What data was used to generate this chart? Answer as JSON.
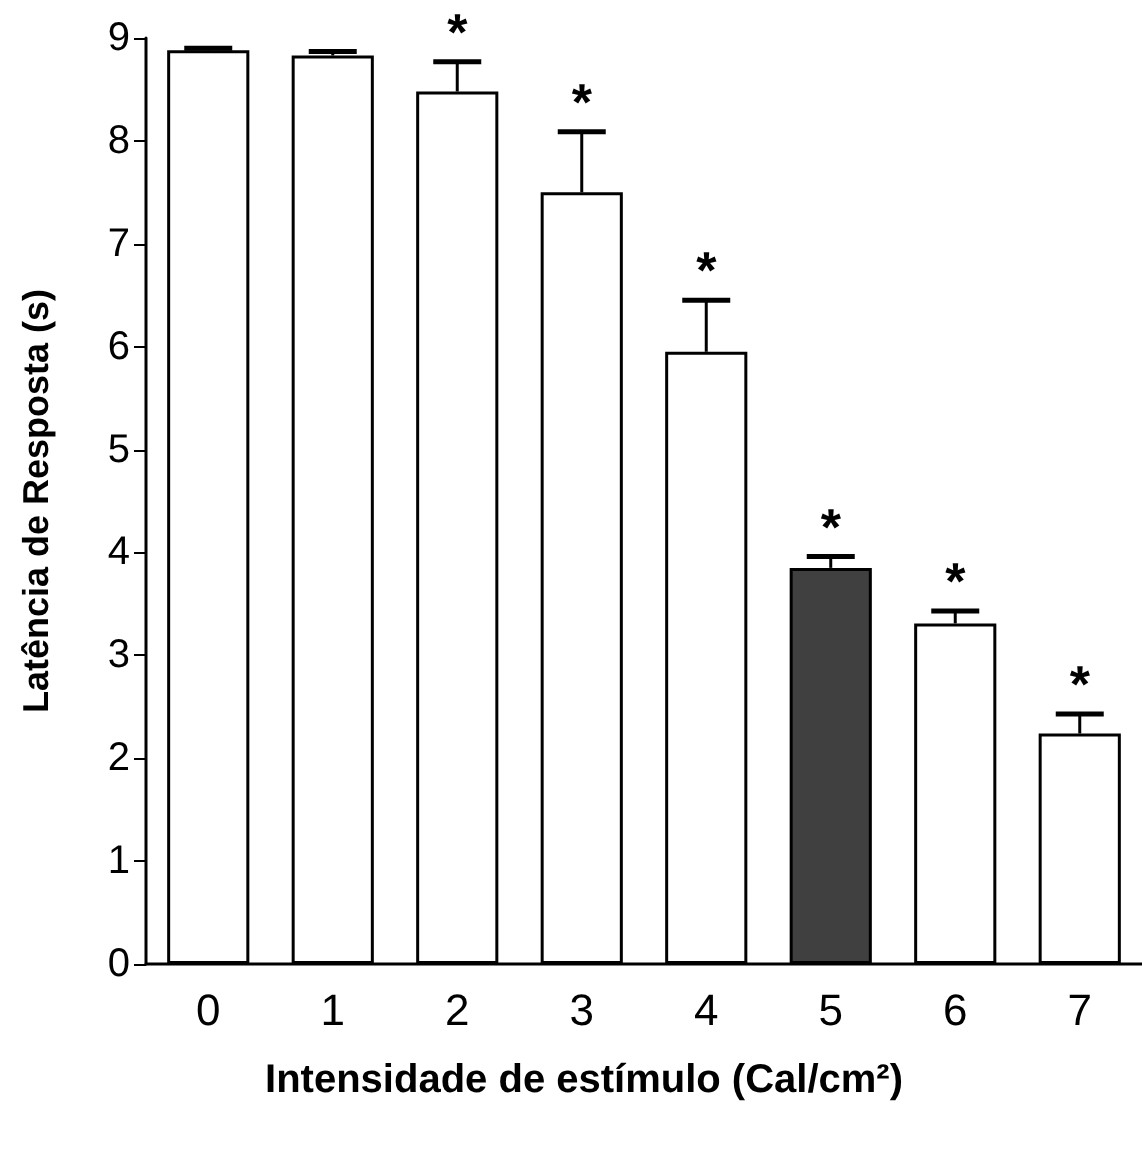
{
  "chart_data": {
    "type": "bar",
    "xlabel": "Intensidade de estímulo (Cal/cm²)",
    "ylabel": "Latência de Resposta (s)",
    "categories": [
      "0",
      "1",
      "2",
      "3",
      "4",
      "5",
      "6",
      "7"
    ],
    "values": [
      8.88,
      8.83,
      8.48,
      7.5,
      5.95,
      3.85,
      3.31,
      2.24
    ],
    "colors": [
      "#ffffff",
      "#ffffff",
      "#ffffff",
      "#ffffff",
      "#ffffff",
      "#404040",
      "#ffffff",
      "#ffffff"
    ],
    "errors": [
      [
        8.88,
        8.9
      ],
      [
        8.83,
        8.87
      ],
      [
        8.48,
        8.77
      ],
      [
        7.5,
        8.09
      ],
      [
        5.95,
        6.45
      ],
      [
        3.85,
        3.96
      ],
      [
        3.31,
        3.43
      ],
      [
        2.24,
        2.43
      ]
    ],
    "ylim": [
      0,
      9
    ],
    "yticks": [
      0,
      1,
      2,
      3,
      4,
      5,
      6,
      7,
      8,
      9
    ],
    "grid": false,
    "annotations": [
      {
        "text": "*",
        "x": "2",
        "y": 8.77
      },
      {
        "text": "*",
        "x": "3",
        "y": 8.09
      },
      {
        "text": "*",
        "x": "4",
        "y": 6.45
      },
      {
        "text": "*",
        "x": "5",
        "y": 3.96
      },
      {
        "text": "*",
        "x": "6",
        "y": 3.43
      },
      {
        "text": "*",
        "x": "7",
        "y": 2.43
      }
    ]
  }
}
